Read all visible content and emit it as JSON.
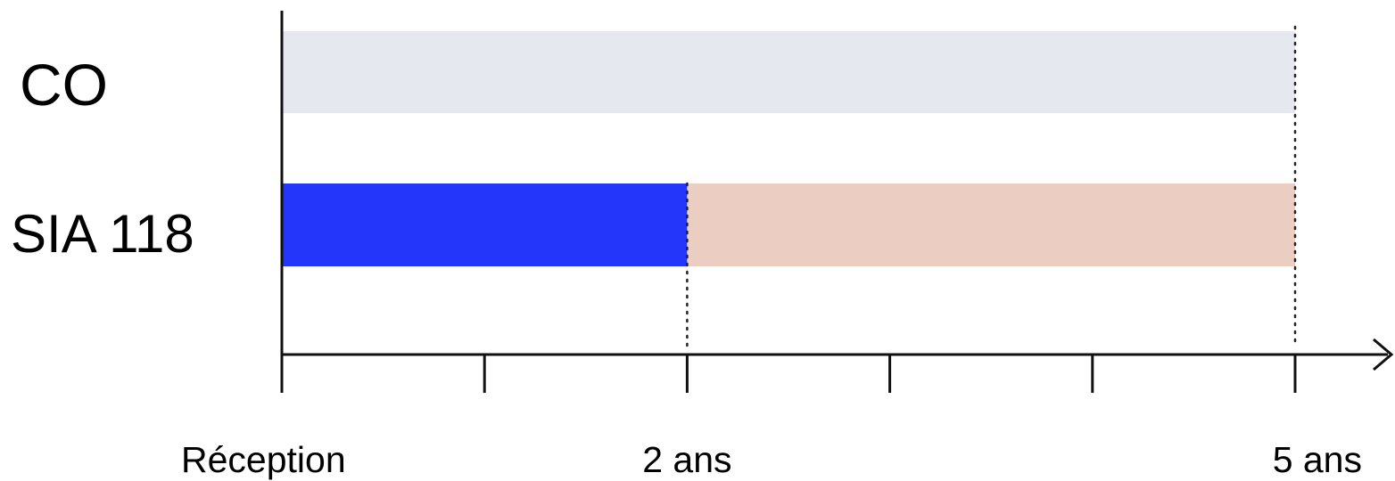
{
  "chart_data": {
    "type": "timeline",
    "x_unit": "years",
    "xlim": [
      0,
      5
    ],
    "ticks": [
      0,
      1,
      2,
      3,
      4,
      5
    ],
    "tick_labels": [
      {
        "x": 0,
        "text": "Réception"
      },
      {
        "x": 2,
        "text": "2 ans"
      },
      {
        "x": 5,
        "text": "5 ans"
      }
    ],
    "rows": [
      {
        "label": "CO",
        "segments": [
          {
            "start": 0,
            "end": 5,
            "color": "#e6e8f0"
          }
        ]
      },
      {
        "label": "SIA 118",
        "segments": [
          {
            "start": 0,
            "end": 2,
            "color": "#2336fa"
          },
          {
            "start": 2,
            "end": 5,
            "color": "#eccdc1"
          }
        ]
      }
    ],
    "dotted_markers": [
      2,
      5
    ]
  }
}
